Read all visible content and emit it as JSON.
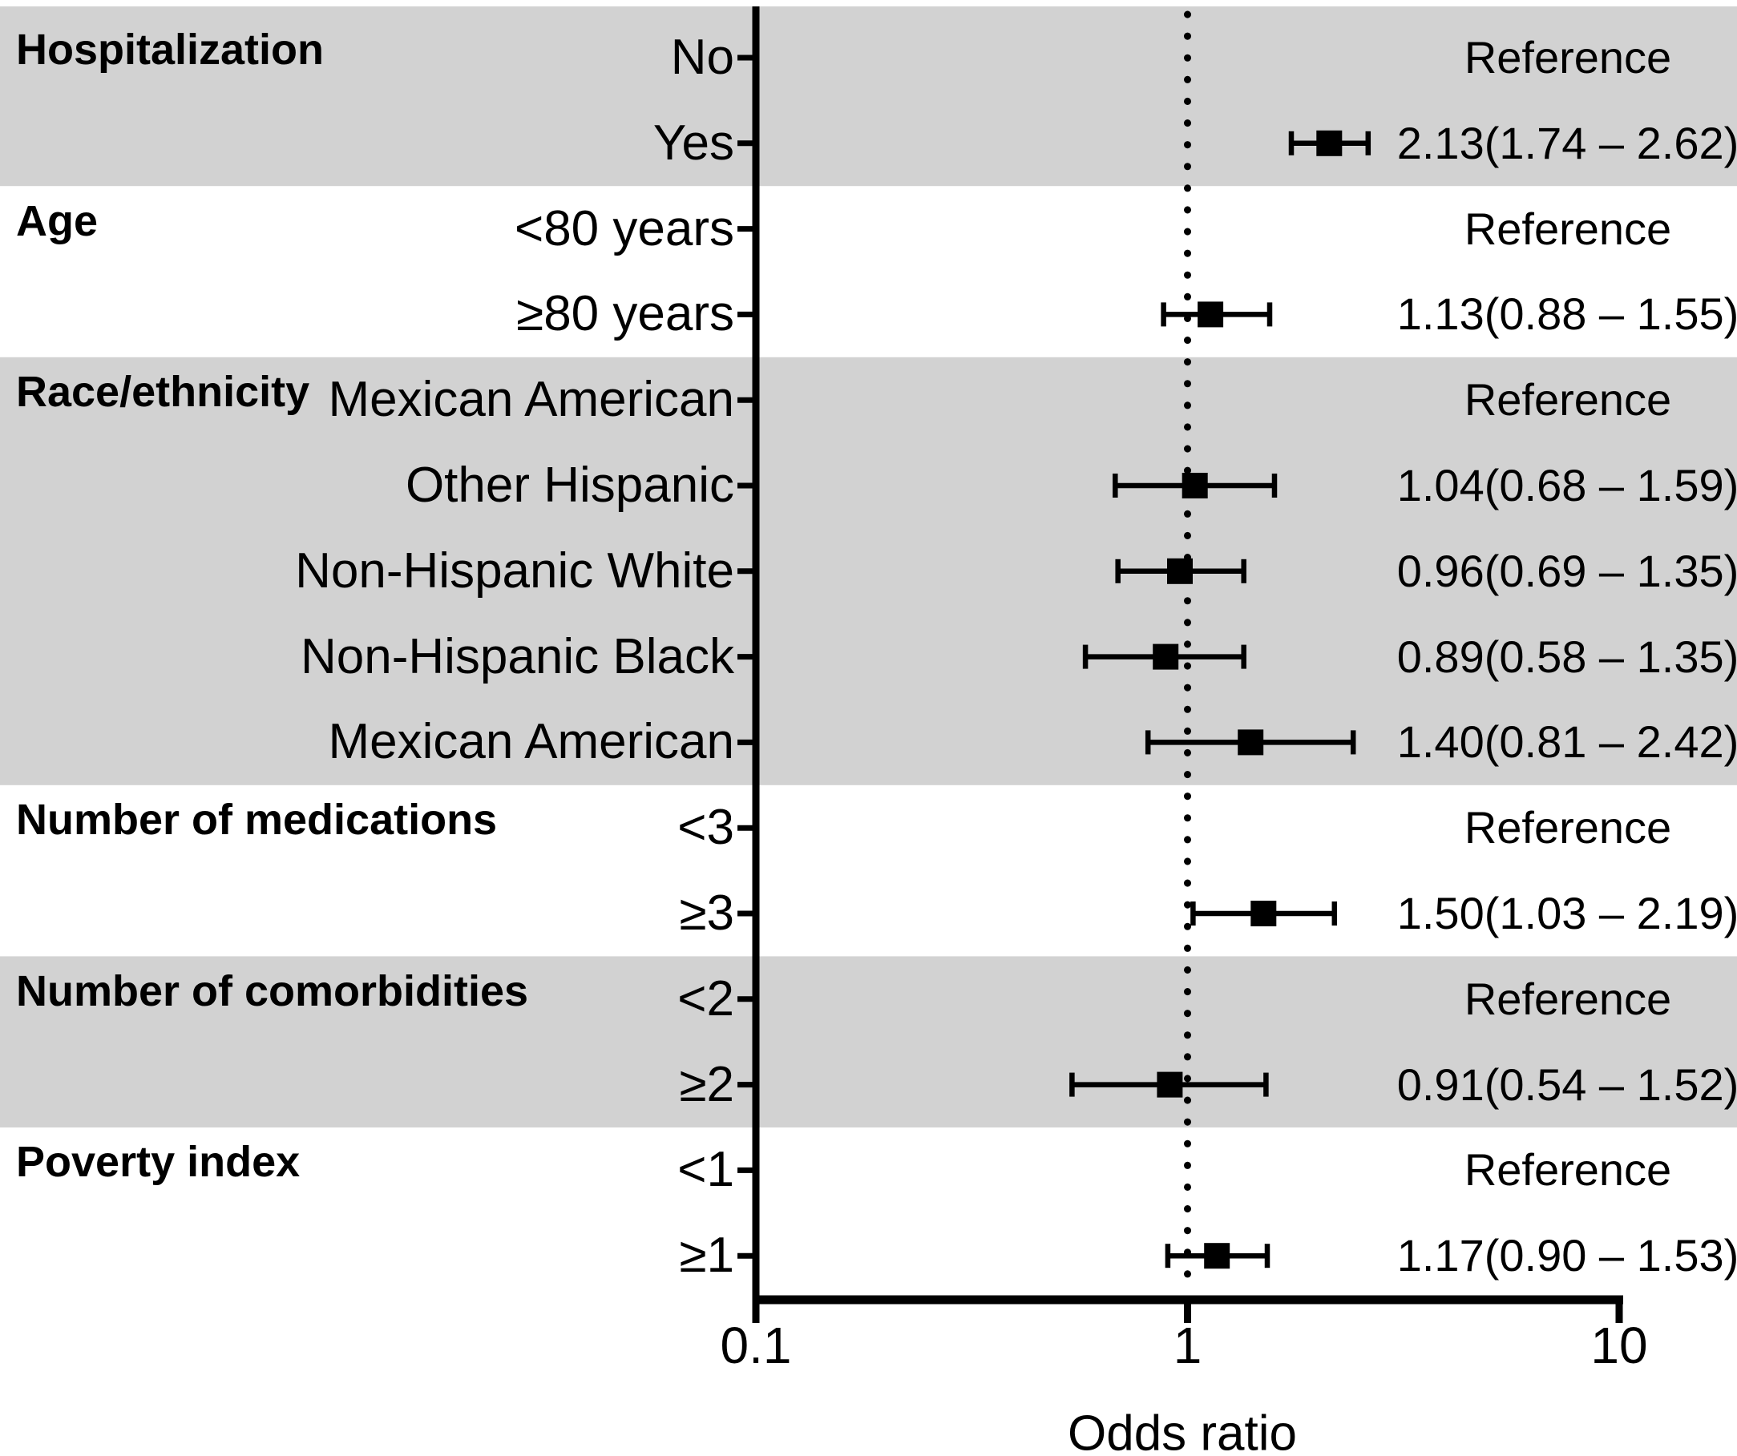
{
  "figure": {
    "kind": "forest-plot",
    "background_color": "#ffffff",
    "band_color": "#d2d2d2",
    "foreground_color": "#000000"
  },
  "chart_data": {
    "type": "scatter",
    "subtype": "forest-plot",
    "title": "",
    "xlabel": "Odds ratio",
    "ylabel": "",
    "x_axis": {
      "scale": "log10",
      "range": [
        0.1,
        10
      ],
      "ticks": [
        0.1,
        1,
        10
      ],
      "tick_labels": [
        "0.1",
        "1",
        "10"
      ],
      "reference_line": 1,
      "reference_line_style": "dotted"
    },
    "legend": "none",
    "grid": "off",
    "groups": [
      {
        "label": "Hospitalization",
        "shaded": true,
        "rows": [
          {
            "label": "No",
            "value_text": "Reference",
            "or": null,
            "ci_low": null,
            "ci_high": null
          },
          {
            "label": "Yes",
            "value_text": "2.13(1.74 – 2.62)",
            "or": 2.13,
            "ci_low": 1.74,
            "ci_high": 2.62
          }
        ]
      },
      {
        "label": "Age",
        "shaded": false,
        "rows": [
          {
            "label": "<80 years",
            "value_text": "Reference",
            "or": null,
            "ci_low": null,
            "ci_high": null
          },
          {
            "label": "≥80 years",
            "value_text": "1.13(0.88 – 1.55)",
            "or": 1.13,
            "ci_low": 0.88,
            "ci_high": 1.55
          }
        ]
      },
      {
        "label": "Race/ethnicity",
        "shaded": true,
        "rows": [
          {
            "label": "Mexican American",
            "value_text": "Reference",
            "or": null,
            "ci_low": null,
            "ci_high": null
          },
          {
            "label": "Other Hispanic",
            "value_text": "1.04(0.68 – 1.59)",
            "or": 1.04,
            "ci_low": 0.68,
            "ci_high": 1.59
          },
          {
            "label": "Non-Hispanic White",
            "value_text": "0.96(0.69 – 1.35)",
            "or": 0.96,
            "ci_low": 0.69,
            "ci_high": 1.35
          },
          {
            "label": "Non-Hispanic Black",
            "value_text": "0.89(0.58 – 1.35)",
            "or": 0.89,
            "ci_low": 0.58,
            "ci_high": 1.35
          },
          {
            "label": "Mexican American",
            "value_text": "1.40(0.81 – 2.42)",
            "or": 1.4,
            "ci_low": 0.81,
            "ci_high": 2.42
          }
        ]
      },
      {
        "label": "Number of medications",
        "shaded": false,
        "rows": [
          {
            "label": "<3",
            "value_text": "Reference",
            "or": null,
            "ci_low": null,
            "ci_high": null
          },
          {
            "label": "≥3",
            "value_text": "1.50(1.03 – 2.19)",
            "or": 1.5,
            "ci_low": 1.03,
            "ci_high": 2.19
          }
        ]
      },
      {
        "label": "Number of comorbidities",
        "shaded": true,
        "rows": [
          {
            "label": "<2",
            "value_text": "Reference",
            "or": null,
            "ci_low": null,
            "ci_high": null
          },
          {
            "label": "≥2",
            "value_text": "0.91(0.54 – 1.52)",
            "or": 0.91,
            "ci_low": 0.54,
            "ci_high": 1.52
          }
        ]
      },
      {
        "label": "Poverty index",
        "shaded": false,
        "rows": [
          {
            "label": "<1",
            "value_text": "Reference",
            "or": null,
            "ci_low": null,
            "ci_high": null
          },
          {
            "label": "≥1",
            "value_text": "1.17(0.90 – 1.53)",
            "or": 1.17,
            "ci_low": 0.9,
            "ci_high": 1.53
          }
        ]
      }
    ]
  }
}
